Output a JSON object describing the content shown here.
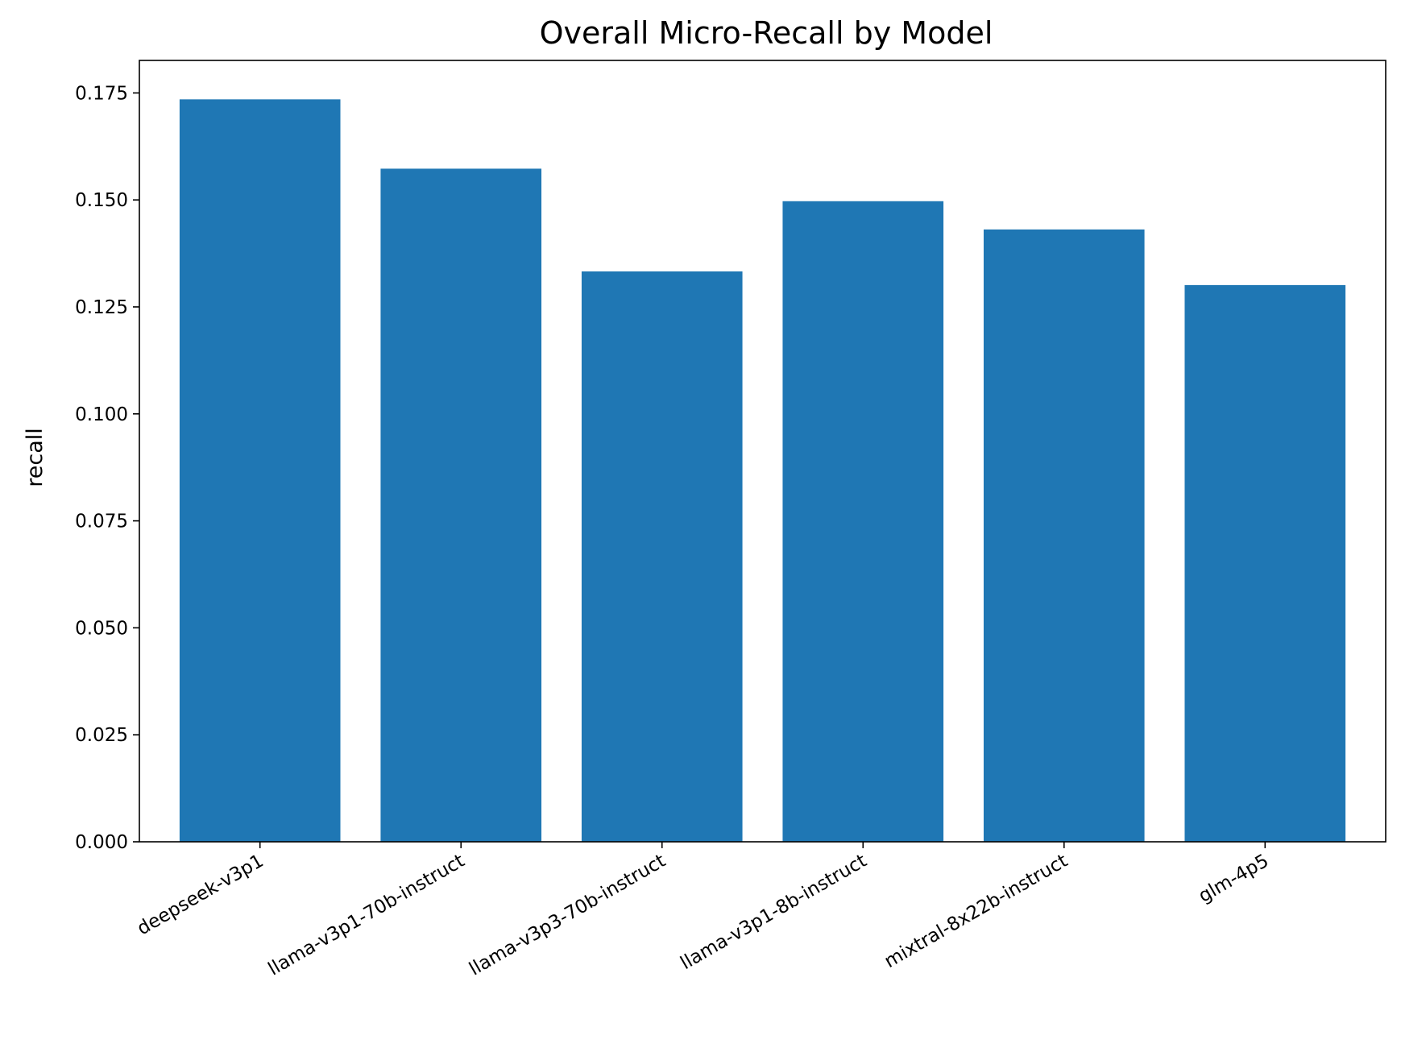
{
  "chart_data": {
    "type": "bar",
    "title": "Overall Micro-Recall by Model",
    "xlabel": "",
    "ylabel": "recall",
    "categories": [
      "deepseek-v3p1",
      "llama-v3p1-70b-instruct",
      "llama-v3p3-70b-instruct",
      "llama-v3p1-8b-instruct",
      "mixtral-8x22b-instruct",
      "glm-4p5"
    ],
    "values": [
      0.1735,
      0.1573,
      0.1333,
      0.1497,
      0.1431,
      0.1301
    ],
    "ylim": [
      0,
      0.1826
    ],
    "yticks": [
      "0.000",
      "0.025",
      "0.050",
      "0.075",
      "0.100",
      "0.125",
      "0.150",
      "0.175"
    ],
    "bar_color": "#1f77b4",
    "grid": false,
    "legend": "none"
  }
}
